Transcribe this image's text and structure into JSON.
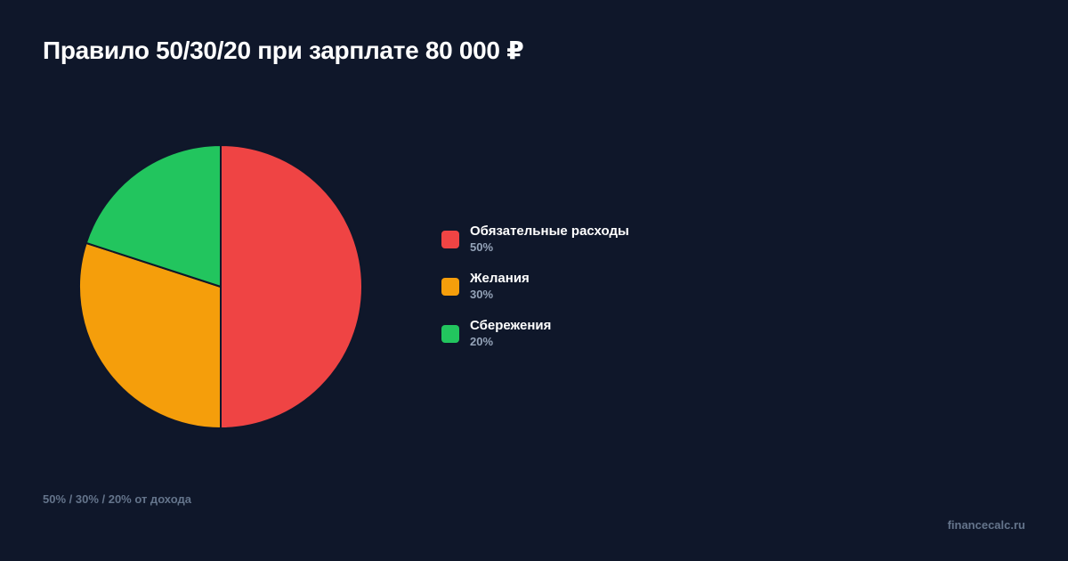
{
  "title": "Правило 50/30/20 при зарплате 80 000 ₽",
  "chart_data": {
    "type": "pie",
    "title": "Правило 50/30/20 при зарплате 80 000 ₽",
    "slices": [
      {
        "label": "Обязательные расходы",
        "value": 50,
        "display": "50%",
        "color": "#ef4444"
      },
      {
        "label": "Желания",
        "value": 30,
        "display": "30%",
        "color": "#f59e0b"
      },
      {
        "label": "Сбережения",
        "value": 20,
        "display": "20%",
        "color": "#22c55e"
      }
    ],
    "start": "12 o'clock",
    "direction": "clockwise",
    "legend_position": "right"
  },
  "footnote": "50% / 30% / 20% от дохода",
  "site": "financecalc.ru"
}
